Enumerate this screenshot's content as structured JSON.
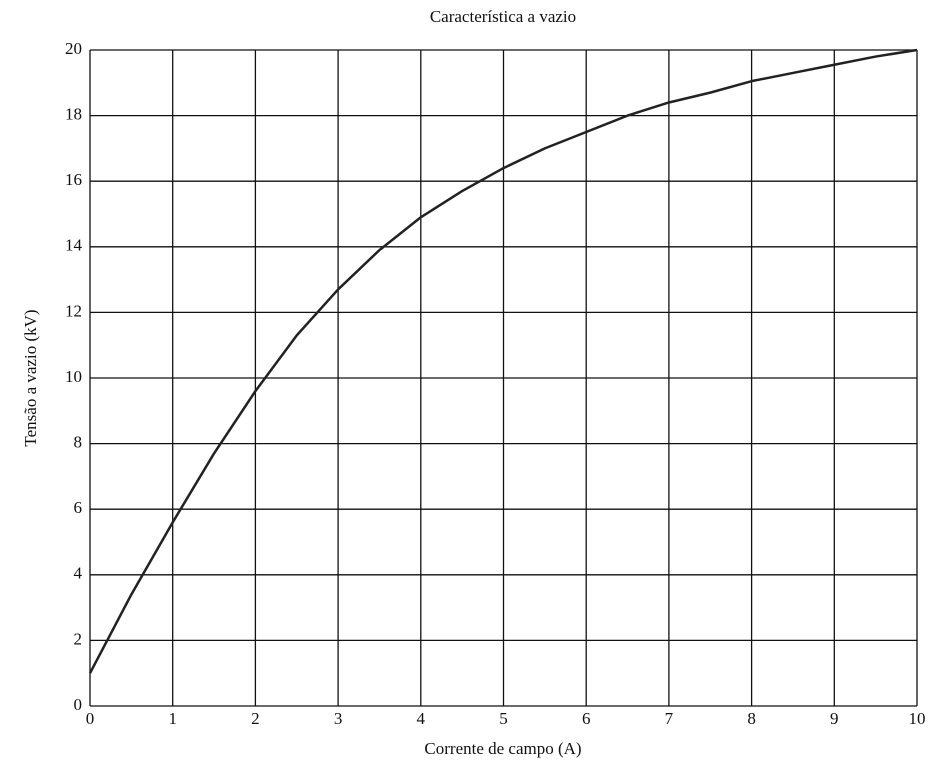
{
  "chart_data": {
    "type": "line",
    "title": "Característica a vazio",
    "xlabel": "Corrente de campo (A)",
    "ylabel": "Tensão a vazio (kV)",
    "x": [
      0,
      0.5,
      1,
      1.5,
      2,
      2.5,
      3,
      3.5,
      4,
      4.5,
      5,
      5.5,
      6,
      6.5,
      7,
      7.5,
      8,
      8.5,
      9,
      9.5,
      10
    ],
    "series": [
      {
        "name": "Característica a vazio",
        "color": "#222222",
        "values": [
          1.0,
          3.4,
          5.6,
          7.7,
          9.6,
          11.3,
          12.7,
          13.9,
          14.9,
          15.7,
          16.4,
          17.0,
          17.5,
          18.0,
          18.4,
          18.7,
          19.05,
          19.3,
          19.55,
          19.8,
          20.0
        ]
      }
    ],
    "xlim": [
      0,
      10
    ],
    "xticks": [
      0,
      1,
      2,
      3,
      4,
      5,
      6,
      7,
      8,
      9,
      10
    ],
    "ylim": [
      0,
      20
    ],
    "yticks": [
      0,
      2,
      4,
      6,
      8,
      10,
      12,
      14,
      16,
      18,
      20
    ],
    "grid": true
  }
}
